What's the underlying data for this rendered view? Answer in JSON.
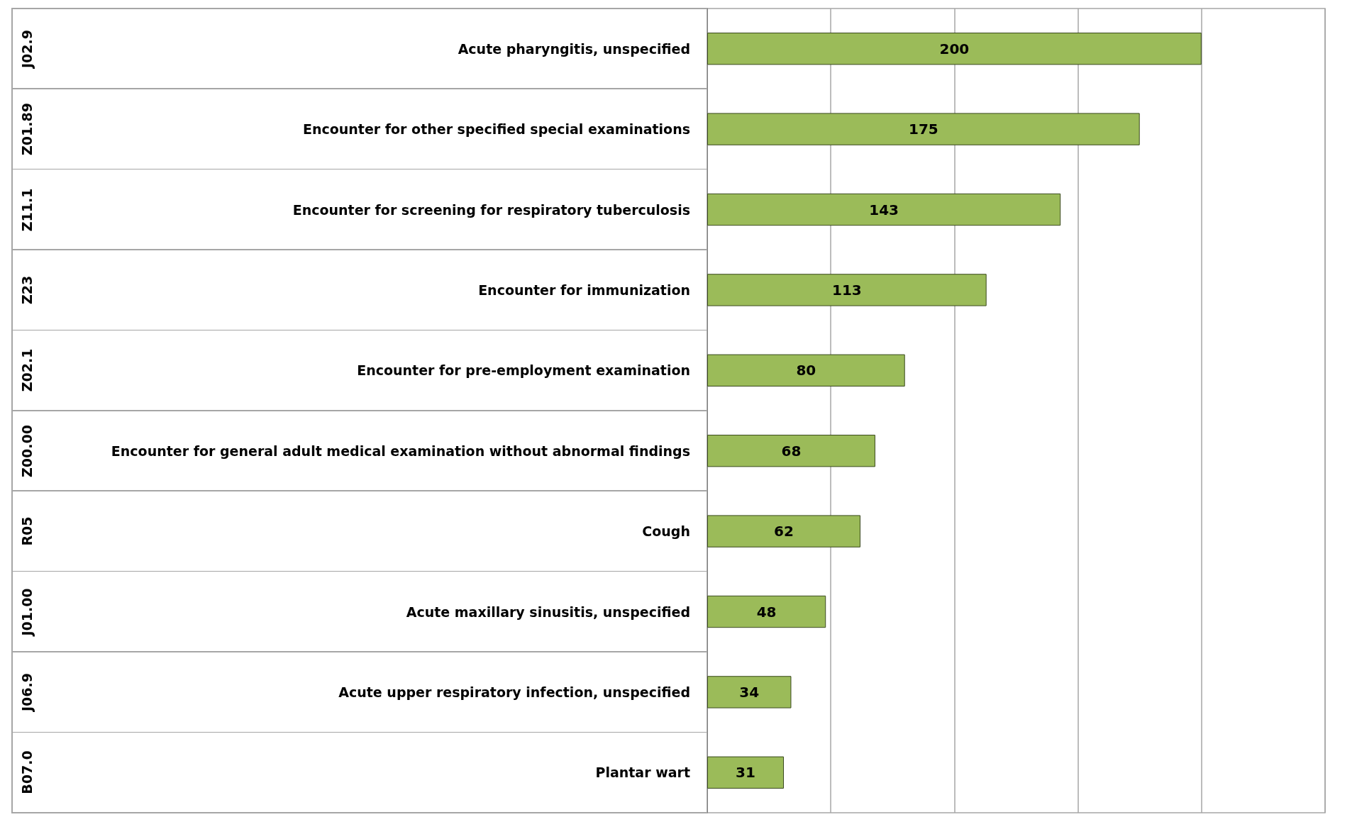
{
  "chart_data": {
    "type": "bar",
    "orientation": "horizontal",
    "categories": [
      "Acute pharyngitis, unspecified",
      "Encounter for other specified special examinations",
      "Encounter for screening for respiratory tuberculosis",
      "Encounter for immunization",
      "Encounter for pre-employment examination",
      "Encounter for general adult medical examination without abnormal findings",
      "Cough",
      "Acute maxillary sinusitis, unspecified",
      "Acute upper respiratory infection, unspecified",
      "Plantar wart"
    ],
    "values": [
      200,
      175,
      143,
      113,
      80,
      68,
      62,
      48,
      34,
      31
    ],
    "color": "#9bbb59",
    "xlim": [
      0,
      250
    ],
    "xticks": [
      {
        "value": 0,
        "label": null
      },
      {
        "value": 50,
        "label": null
      },
      {
        "value": 100,
        "label": null
      },
      {
        "value": 150,
        "label": null
      },
      {
        "value": 200,
        "label": null
      },
      {
        "value": 250,
        "label": null
      }
    ],
    "grid": "x",
    "tick_labels": "y",
    "data_labels": true,
    "annotations": [
      "J02.9",
      "Z01.89",
      "Z11.1",
      "Z23",
      "Z02.1",
      "Z00.00",
      "R05",
      "J01.00",
      "J06.9",
      "B07.0"
    ]
  }
}
